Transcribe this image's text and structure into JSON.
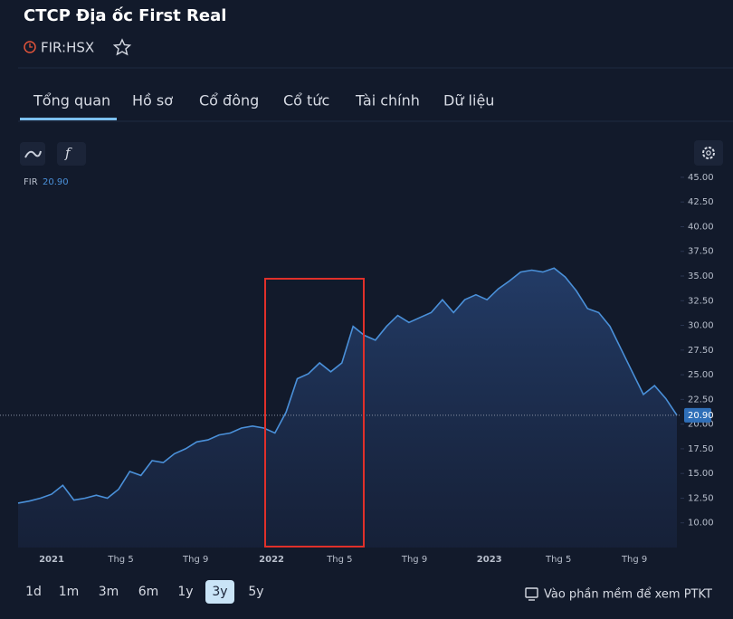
{
  "header": {
    "title": "CTCP Địa ốc First Real",
    "ticker": "FIR:HSX"
  },
  "tabs": [
    "Tổng quan",
    "Hồ sơ",
    "Cổ đông",
    "Cổ tức",
    "Tài chính",
    "Dữ liệu"
  ],
  "active_tab": 0,
  "chart_data": {
    "type": "line",
    "series": [
      {
        "name": "FIR",
        "color": "#4a90d9",
        "values": [
          12.0,
          12.2,
          12.5,
          12.9,
          13.8,
          12.3,
          12.5,
          12.8,
          12.5,
          13.4,
          15.2,
          14.8,
          16.3,
          16.1,
          17.0,
          17.5,
          18.2,
          18.4,
          18.9,
          19.1,
          19.6,
          19.8,
          19.6,
          19.1,
          21.2,
          24.6,
          25.1,
          26.2,
          25.3,
          26.2,
          29.9,
          29.0,
          28.5,
          29.9,
          31.0,
          30.3,
          30.8,
          31.3,
          32.6,
          31.3,
          32.6,
          33.1,
          32.6,
          33.7,
          34.5,
          35.4,
          35.6,
          35.4,
          35.8,
          34.9,
          33.5,
          31.7,
          31.3,
          29.9,
          27.6,
          25.3,
          23.0,
          23.9,
          22.6,
          20.9
        ]
      }
    ],
    "last_value_label": "20.90",
    "xlim": [
      0,
      59
    ],
    "xticks": [
      {
        "value": 3.0,
        "label": "2021"
      },
      {
        "value": 9.2,
        "label": "Thg 5"
      },
      {
        "value": 15.9,
        "label": "Thg 9"
      },
      {
        "value": 22.7,
        "label": "2022"
      },
      {
        "value": 28.8,
        "label": "Thg 5"
      },
      {
        "value": 35.5,
        "label": "Thg 9"
      },
      {
        "value": 42.2,
        "label": "2023"
      },
      {
        "value": 48.4,
        "label": "Thg 5"
      },
      {
        "value": 55.2,
        "label": "Thg 9"
      }
    ],
    "ylim": [
      7.5,
      46
    ],
    "yticks": [
      {
        "value": 10,
        "label": "10.00"
      },
      {
        "value": 12.5,
        "label": "12.50"
      },
      {
        "value": 15,
        "label": "15.00"
      },
      {
        "value": 17.5,
        "label": "17.50"
      },
      {
        "value": 20,
        "label": "20.00"
      },
      {
        "value": 22.5,
        "label": "22.50"
      },
      {
        "value": 25,
        "label": "25.00"
      },
      {
        "value": 27.5,
        "label": "27.50"
      },
      {
        "value": 30,
        "label": "30.00"
      },
      {
        "value": 32.5,
        "label": "32.50"
      },
      {
        "value": 35,
        "label": "35.00"
      },
      {
        "value": 37.5,
        "label": "37.50"
      },
      {
        "value": 40,
        "label": "40.00"
      },
      {
        "value": 42.5,
        "label": "42.50"
      },
      {
        "value": 45,
        "label": "45.00"
      }
    ]
  },
  "ranges": [
    "1d",
    "1m",
    "3m",
    "6m",
    "1y",
    "3y",
    "5y"
  ],
  "active_range": 5,
  "footer_link": "Vào phần mềm để xem PTKT"
}
